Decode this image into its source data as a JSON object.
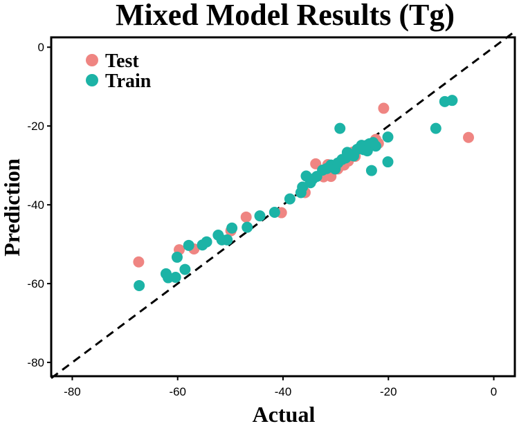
{
  "chart_data": {
    "type": "scatter",
    "title": "Mixed Model Results (Tg)",
    "xlabel": "Actual",
    "ylabel": "Prediction",
    "xlim": [
      -84,
      4
    ],
    "ylim": [
      -83.5,
      2.5
    ],
    "xticks": [
      -80,
      -60,
      -40,
      -20,
      0
    ],
    "yticks": [
      0,
      -20,
      -40,
      -60,
      -80
    ],
    "reference_line": {
      "style": "dashed",
      "from": [
        -84,
        -84
      ],
      "to": [
        4,
        4
      ]
    },
    "legend": {
      "position": "top-left",
      "entries": [
        "Test",
        "Train"
      ]
    },
    "series": [
      {
        "name": "Test",
        "color": "#ef8582",
        "points": [
          [
            -67.4,
            -54.5
          ],
          [
            -59.7,
            -51.4
          ],
          [
            -56.9,
            -51.2
          ],
          [
            -49.9,
            -46.6
          ],
          [
            -47.0,
            -43.1
          ],
          [
            -40.3,
            -42.0
          ],
          [
            -35.8,
            -36.9
          ],
          [
            -33.8,
            -29.6
          ],
          [
            -32.3,
            -32.9
          ],
          [
            -31.5,
            -29.8
          ],
          [
            -30.9,
            -32.8
          ],
          [
            -30.2,
            -30.9
          ],
          [
            -29.6,
            -30.9
          ],
          [
            -28.4,
            -29.9
          ],
          [
            -27.6,
            -28.9
          ],
          [
            -26.7,
            -26.6
          ],
          [
            -26.3,
            -27.7
          ],
          [
            -22.4,
            -23.4
          ],
          [
            -21.9,
            -24.4
          ],
          [
            -20.9,
            -15.5
          ],
          [
            -4.8,
            -22.9
          ]
        ]
      },
      {
        "name": "Train",
        "color": "#1cb3a6",
        "points": [
          [
            -67.3,
            -60.5
          ],
          [
            -62.2,
            -57.5
          ],
          [
            -61.8,
            -58.5
          ],
          [
            -60.4,
            -58.4
          ],
          [
            -60.1,
            -53.3
          ],
          [
            -58.6,
            -56.4
          ],
          [
            -57.9,
            -50.3
          ],
          [
            -55.3,
            -50.2
          ],
          [
            -54.5,
            -49.4
          ],
          [
            -52.3,
            -47.7
          ],
          [
            -51.6,
            -48.9
          ],
          [
            -50.6,
            -48.9
          ],
          [
            -49.7,
            -45.9
          ],
          [
            -46.8,
            -45.7
          ],
          [
            -44.4,
            -42.8
          ],
          [
            -41.6,
            -41.9
          ],
          [
            -38.7,
            -38.5
          ],
          [
            -36.6,
            -36.9
          ],
          [
            -36.3,
            -35.5
          ],
          [
            -35.6,
            -32.7
          ],
          [
            -34.8,
            -34.4
          ],
          [
            -34.4,
            -33.5
          ],
          [
            -33.6,
            -32.8
          ],
          [
            -32.5,
            -31.2
          ],
          [
            -31.7,
            -30.8
          ],
          [
            -30.9,
            -29.9
          ],
          [
            -30.1,
            -30.9
          ],
          [
            -29.6,
            -29.4
          ],
          [
            -29.2,
            -20.6
          ],
          [
            -28.8,
            -28.5
          ],
          [
            -28.1,
            -28.1
          ],
          [
            -27.8,
            -26.7
          ],
          [
            -26.6,
            -27.6
          ],
          [
            -25.9,
            -25.9
          ],
          [
            -25.1,
            -24.9
          ],
          [
            -24.7,
            -26.0
          ],
          [
            -24.3,
            -25.0
          ],
          [
            -24.0,
            -26.3
          ],
          [
            -23.6,
            -24.5
          ],
          [
            -22.9,
            -24.2
          ],
          [
            -23.2,
            -31.3
          ],
          [
            -22.4,
            -25.1
          ],
          [
            -20.1,
            -22.8
          ],
          [
            -20.1,
            -29.1
          ],
          [
            -11.0,
            -20.6
          ],
          [
            -9.3,
            -13.8
          ],
          [
            -7.9,
            -13.5
          ]
        ]
      }
    ]
  }
}
